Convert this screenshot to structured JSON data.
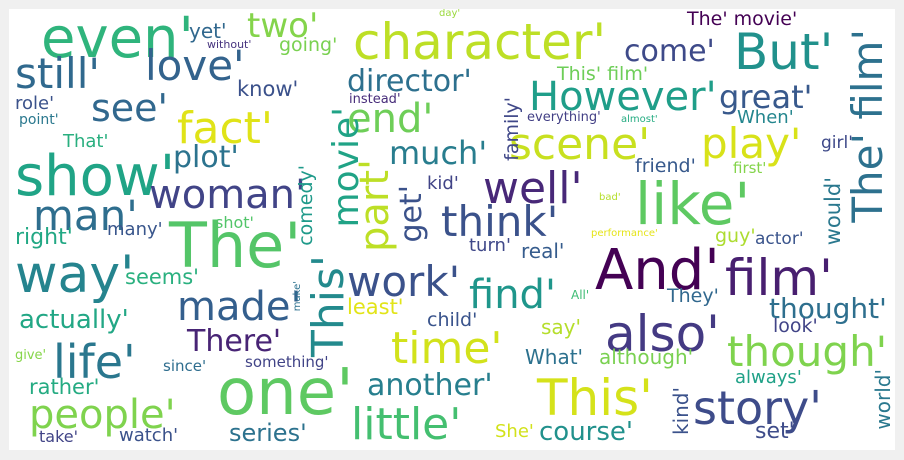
{
  "cloud": {
    "words": [
      {
        "text": "even'",
        "c": "#2fb47c"
      },
      {
        "text": "two'",
        "c": "#84d44b"
      },
      {
        "text": "character'",
        "c": "#bddf26"
      },
      {
        "text": "The' movie'",
        "c": "#440154"
      },
      {
        "text": "day'",
        "c": "#9bd93c"
      },
      {
        "text": "yet'",
        "c": "#31688e"
      },
      {
        "text": "without'",
        "c": "#46337e"
      },
      {
        "text": "going'",
        "c": "#7ad151"
      },
      {
        "text": "come'",
        "c": "#3e4a89"
      },
      {
        "text": "But'",
        "c": "#21918c"
      },
      {
        "text": "still'",
        "c": "#30698e"
      },
      {
        "text": "love'",
        "c": "#33638d"
      },
      {
        "text": "director'",
        "c": "#2d708e"
      },
      {
        "text": "This' film'",
        "c": "#6ece58"
      },
      {
        "text": "However'",
        "c": "#1f9e89"
      },
      {
        "text": "great'",
        "c": "#38598c"
      },
      {
        "text": "know'",
        "c": "#3b518b"
      },
      {
        "text": "instead'",
        "c": "#472c7a"
      },
      {
        "text": "role'",
        "c": "#3b528b"
      },
      {
        "text": "see'",
        "c": "#31688e"
      },
      {
        "text": "point'",
        "c": "#2a788e"
      },
      {
        "text": "fact'",
        "c": "#e0e318"
      },
      {
        "text": "end'",
        "c": "#6ece58"
      },
      {
        "text": "everything'",
        "c": "#423f85"
      },
      {
        "text": "almost'",
        "c": "#25ac82"
      },
      {
        "text": "When'",
        "c": "#24868e"
      },
      {
        "text": "That'",
        "c": "#29af7f"
      },
      {
        "text": "scene'",
        "c": "#c8e020"
      },
      {
        "text": "play'",
        "c": "#d8e219"
      },
      {
        "text": "girl'",
        "c": "#3e4989"
      },
      {
        "text": "plot'",
        "c": "#2c738e"
      },
      {
        "text": "much'",
        "c": "#287d8e"
      },
      {
        "text": "friend'",
        "c": "#37598c"
      },
      {
        "text": "first'",
        "c": "#84d44b"
      },
      {
        "text": "show'",
        "c": "#20a486"
      },
      {
        "text": "woman'",
        "c": "#414487"
      },
      {
        "text": "kid'",
        "c": "#414487"
      },
      {
        "text": "well'",
        "c": "#482878"
      },
      {
        "text": "like'",
        "c": "#5ec962"
      },
      {
        "text": "man'",
        "c": "#2e6e8e"
      },
      {
        "text": "bad'",
        "c": "#b5de2b"
      },
      {
        "text": "think'",
        "c": "#3b528b"
      },
      {
        "text": "shot'",
        "c": "#52c569"
      },
      {
        "text": "right'",
        "c": "#22a884"
      },
      {
        "text": "many'",
        "c": "#39568c"
      },
      {
        "text": "The'",
        "c": "#54c568"
      },
      {
        "text": "performance'",
        "c": "#e5e419"
      },
      {
        "text": "turn'",
        "c": "#3f4889"
      },
      {
        "text": "real'",
        "c": "#365c8d"
      },
      {
        "text": "guy'",
        "c": "#addc30"
      },
      {
        "text": "actor'",
        "c": "#3a548c"
      },
      {
        "text": "way'",
        "c": "#25848e"
      },
      {
        "text": "And'",
        "c": "#440154"
      },
      {
        "text": "film'",
        "c": "#481f70"
      },
      {
        "text": "seems'",
        "c": "#2ab07f"
      },
      {
        "text": "work'",
        "c": "#3b528b"
      },
      {
        "text": "find'",
        "c": "#1f968b"
      },
      {
        "text": "made'",
        "c": "#345f8d"
      },
      {
        "text": "They'",
        "c": "#31688e"
      },
      {
        "text": "thought'",
        "c": "#2e6f8e"
      },
      {
        "text": "least'",
        "c": "#e2e418"
      },
      {
        "text": "All'",
        "c": "#3dbc74"
      },
      {
        "text": "actually'",
        "c": "#22a785"
      },
      {
        "text": "also'",
        "c": "#443a83"
      },
      {
        "text": "look'",
        "c": "#414487"
      },
      {
        "text": "child'",
        "c": "#3a548c"
      },
      {
        "text": "There'",
        "c": "#482475"
      },
      {
        "text": "say'",
        "c": "#b5de2b"
      },
      {
        "text": "time'",
        "c": "#d2e21b"
      },
      {
        "text": "though'",
        "c": "#7fd34e"
      },
      {
        "text": "life'",
        "c": "#2a778e"
      },
      {
        "text": "something'",
        "c": "#414487"
      },
      {
        "text": "give'",
        "c": "#86d549"
      },
      {
        "text": "since'",
        "c": "#2e6d8e"
      },
      {
        "text": "What'",
        "c": "#2c718e"
      },
      {
        "text": "although'",
        "c": "#7ad151"
      },
      {
        "text": "one'",
        "c": "#5ec962"
      },
      {
        "text": "another'",
        "c": "#277f8e"
      },
      {
        "text": "always'",
        "c": "#1fa187"
      },
      {
        "text": "rather'",
        "c": "#25ab82"
      },
      {
        "text": "This'",
        "c": "#d5e21a"
      },
      {
        "text": "story'",
        "c": "#3e4c8a"
      },
      {
        "text": "people'",
        "c": "#7fd34e"
      },
      {
        "text": "little'",
        "c": "#44bf70"
      },
      {
        "text": "series'",
        "c": "#2c728e"
      },
      {
        "text": "She'",
        "c": "#d2e21b"
      },
      {
        "text": "course'",
        "c": "#21918c"
      },
      {
        "text": "set'",
        "c": "#3e4c8a"
      },
      {
        "text": "take'",
        "c": "#414487"
      },
      {
        "text": "watch'",
        "c": "#3b528b"
      },
      {
        "text": "movie'",
        "c": "#20a386"
      },
      {
        "text": "This'",
        "c": "#238a8d"
      },
      {
        "text": "part'",
        "c": "#bddf26"
      },
      {
        "text": "get'",
        "c": "#3b528b"
      },
      {
        "text": "comedy'",
        "c": "#1f9a8a"
      },
      {
        "text": "family'",
        "c": "#3f4788"
      },
      {
        "text": "would'",
        "c": "#2a788e"
      },
      {
        "text": "The' film'",
        "c": "#2d718e"
      },
      {
        "text": "make'",
        "c": "#2c718e"
      },
      {
        "text": "kind'",
        "c": "#3b528b"
      },
      {
        "text": "world'",
        "c": "#2a788e"
      }
    ]
  }
}
